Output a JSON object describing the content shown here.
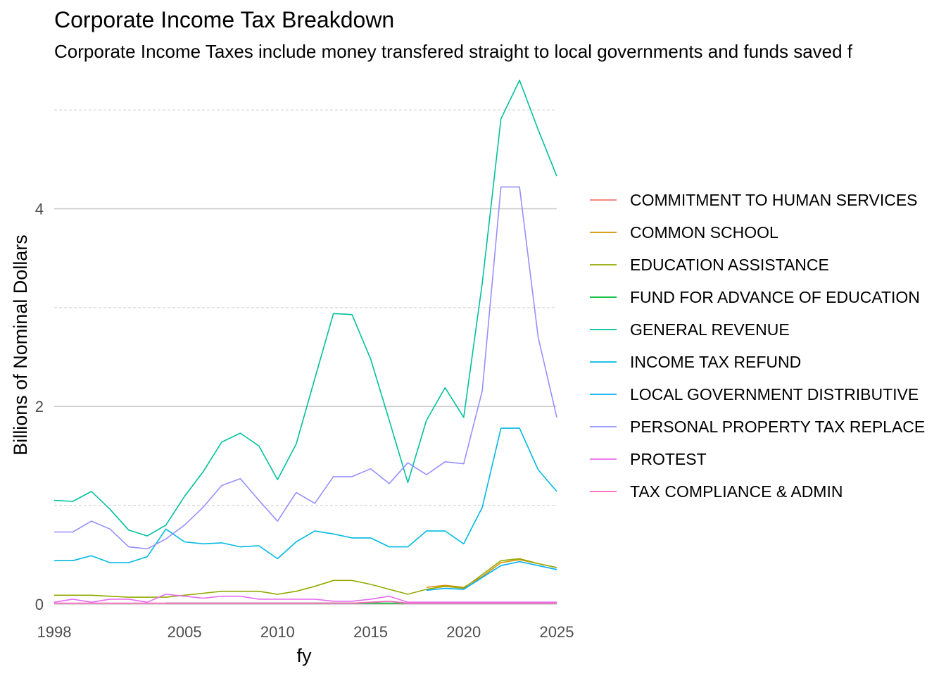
{
  "chart_data": {
    "type": "line",
    "title": "Corporate Income Tax Breakdown",
    "subtitle": "Corporate Income Taxes include money transfered straight to local governments and funds saved f",
    "xlabel": "fy",
    "ylabel": "Billions of Nominal Dollars",
    "xlim": [
      1998,
      2025
    ],
    "ylim": [
      -0.1,
      5.4
    ],
    "x_ticks": [
      1998,
      2005,
      2010,
      2015,
      2020,
      2025
    ],
    "y_ticks": [
      0,
      2,
      4
    ],
    "grid": true,
    "legend_position": "right",
    "series": [
      {
        "name": "COMMITMENT TO HUMAN SERVICES",
        "color": "#F8766D",
        "x": [
          2004,
          2005,
          2006,
          2007,
          2008,
          2009,
          2010,
          2011,
          2012,
          2013,
          2014,
          2015,
          2016,
          2017,
          2018,
          2019,
          2020,
          2021,
          2022,
          2023,
          2024,
          2025
        ],
        "y": [
          0.01,
          0.01,
          0.01,
          0.01,
          0.01,
          0.01,
          0.01,
          0.01,
          0.01,
          0.01,
          0.01,
          0.01,
          0.01,
          0.01,
          0.01,
          0.01,
          0.01,
          0.01,
          0.01,
          0.01,
          0.01,
          0.01
        ]
      },
      {
        "name": "COMMON SCHOOL",
        "color": "#D39200",
        "x": [
          2018,
          2019,
          2020,
          2021,
          2022,
          2023,
          2024,
          2025
        ],
        "y": [
          0.17,
          0.19,
          0.17,
          0.28,
          0.42,
          0.45,
          0.41,
          0.37
        ]
      },
      {
        "name": "EDUCATION ASSISTANCE",
        "color": "#93AA00",
        "x": [
          1998,
          1999,
          2000,
          2001,
          2002,
          2003,
          2004,
          2005,
          2006,
          2007,
          2008,
          2009,
          2010,
          2011,
          2012,
          2013,
          2014,
          2015,
          2016,
          2017,
          2018,
          2019,
          2020,
          2021,
          2022,
          2023,
          2024,
          2025
        ],
        "y": [
          0.09,
          0.09,
          0.09,
          0.08,
          0.07,
          0.07,
          0.07,
          0.09,
          0.11,
          0.13,
          0.13,
          0.13,
          0.1,
          0.13,
          0.18,
          0.24,
          0.24,
          0.2,
          0.15,
          0.1,
          0.15,
          0.18,
          0.16,
          0.3,
          0.44,
          0.46,
          0.41,
          0.37
        ]
      },
      {
        "name": "FUND FOR ADVANCE OF EDUCATION",
        "color": "#00BA38",
        "x": [
          2004,
          2005,
          2006,
          2007,
          2008,
          2009,
          2010,
          2011,
          2012,
          2013,
          2014,
          2015,
          2016,
          2017,
          2018,
          2019,
          2020,
          2021,
          2022,
          2023,
          2024,
          2025
        ],
        "y": [
          0.01,
          0.01,
          0.01,
          0.01,
          0.01,
          0.01,
          0.01,
          0.01,
          0.01,
          0.01,
          0.01,
          0.01,
          0.01,
          0.01,
          0.01,
          0.01,
          0.01,
          0.01,
          0.01,
          0.01,
          0.01,
          0.01
        ]
      },
      {
        "name": "GENERAL REVENUE",
        "color": "#00C19F",
        "x": [
          1998,
          1999,
          2000,
          2001,
          2002,
          2003,
          2004,
          2005,
          2006,
          2007,
          2008,
          2009,
          2010,
          2011,
          2012,
          2013,
          2014,
          2015,
          2016,
          2017,
          2018,
          2019,
          2020,
          2021,
          2022,
          2023,
          2024,
          2025
        ],
        "y": [
          1.05,
          1.04,
          1.14,
          0.96,
          0.75,
          0.69,
          0.8,
          1.09,
          1.34,
          1.64,
          1.73,
          1.6,
          1.26,
          1.62,
          2.28,
          2.94,
          2.93,
          2.48,
          1.86,
          1.23,
          1.86,
          2.19,
          1.89,
          3.25,
          4.91,
          5.3,
          4.8,
          4.33
        ]
      },
      {
        "name": "INCOME TAX REFUND",
        "color": "#00B9E3",
        "x": [
          1998,
          1999,
          2000,
          2001,
          2002,
          2003,
          2004,
          2005,
          2006,
          2007,
          2008,
          2009,
          2010,
          2011,
          2012,
          2013,
          2014,
          2015,
          2016,
          2017,
          2018,
          2019,
          2020,
          2021,
          2022,
          2023,
          2024,
          2025
        ],
        "y": [
          0.44,
          0.44,
          0.49,
          0.42,
          0.42,
          0.48,
          0.76,
          0.63,
          0.61,
          0.62,
          0.58,
          0.59,
          0.46,
          0.63,
          0.74,
          0.71,
          0.67,
          0.67,
          0.58,
          0.58,
          0.74,
          0.74,
          0.61,
          0.98,
          1.78,
          1.78,
          1.36,
          1.14
        ]
      },
      {
        "name": "LOCAL GOVERNMENT DISTRIBUTIVE",
        "color": "#00ADFA",
        "x": [
          2018,
          2019,
          2020,
          2021,
          2022,
          2023,
          2024,
          2025
        ],
        "y": [
          0.14,
          0.16,
          0.15,
          0.27,
          0.39,
          0.43,
          0.39,
          0.35
        ]
      },
      {
        "name": "PERSONAL PROPERTY TAX REPLACE",
        "color": "#9590FF",
        "x": [
          1998,
          1999,
          2000,
          2001,
          2002,
          2003,
          2004,
          2005,
          2006,
          2007,
          2008,
          2009,
          2010,
          2011,
          2012,
          2013,
          2014,
          2015,
          2016,
          2017,
          2018,
          2019,
          2020,
          2021,
          2022,
          2023,
          2024,
          2025
        ],
        "y": [
          0.73,
          0.73,
          0.84,
          0.76,
          0.58,
          0.56,
          0.66,
          0.8,
          0.98,
          1.2,
          1.27,
          1.05,
          0.84,
          1.13,
          1.02,
          1.29,
          1.29,
          1.37,
          1.22,
          1.43,
          1.31,
          1.44,
          1.42,
          2.16,
          4.22,
          4.22,
          2.7,
          1.89
        ]
      },
      {
        "name": "PROTEST",
        "color": "#E76BF3",
        "x": [
          1998,
          1999,
          2000,
          2001,
          2002,
          2003,
          2004,
          2005,
          2006,
          2007,
          2008,
          2009,
          2010,
          2011,
          2012,
          2013,
          2014,
          2015,
          2016,
          2017,
          2018,
          2019,
          2020,
          2021,
          2022,
          2023,
          2024,
          2025
        ],
        "y": [
          0.02,
          0.05,
          0.02,
          0.05,
          0.05,
          0.02,
          0.1,
          0.08,
          0.06,
          0.08,
          0.08,
          0.05,
          0.05,
          0.05,
          0.05,
          0.03,
          0.03,
          0.05,
          0.08,
          0.02,
          0.02,
          0.02,
          0.02,
          0.02,
          0.02,
          0.02,
          0.02,
          0.02
        ]
      },
      {
        "name": "TAX COMPLIANCE & ADMIN",
        "color": "#FF62BC",
        "x": [
          1998,
          1999,
          2000,
          2001,
          2002,
          2003,
          2004,
          2005,
          2006,
          2007,
          2008,
          2009,
          2010,
          2011,
          2012,
          2013,
          2014,
          2015,
          2016,
          2017,
          2018,
          2019,
          2020,
          2021,
          2022,
          2023,
          2024,
          2025
        ],
        "y": [
          0.01,
          0.01,
          0.01,
          0.01,
          0.01,
          0.01,
          0.01,
          0.01,
          0.01,
          0.01,
          0.01,
          0.01,
          0.01,
          0.01,
          0.01,
          0.01,
          0.01,
          0.02,
          0.03,
          0.01,
          0.01,
          0.01,
          0.01,
          0.01,
          0.01,
          0.01,
          0.01,
          0.01
        ]
      }
    ]
  }
}
